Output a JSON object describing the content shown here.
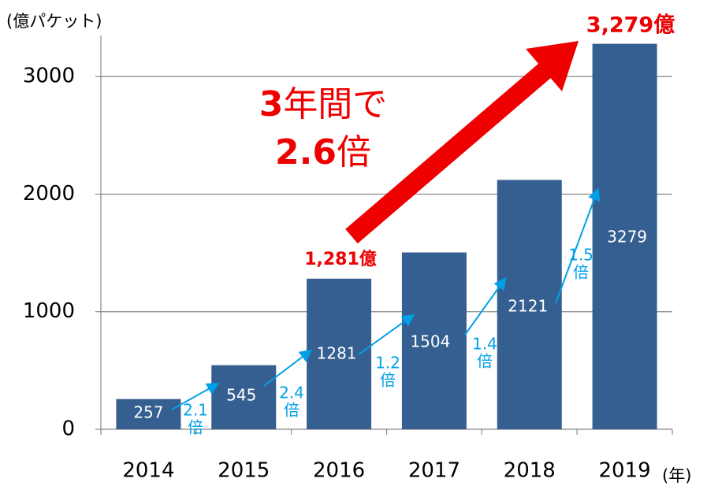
{
  "chart_data": {
    "type": "bar",
    "y_axis_label": "(億パケット)",
    "x_axis_label": "(年)",
    "categories": [
      "2014",
      "2015",
      "2016",
      "2017",
      "2018",
      "2019"
    ],
    "values": [
      257,
      545,
      1281,
      1504,
      2121,
      3279
    ],
    "color": "#365f91",
    "ylim": [
      0,
      3350
    ],
    "yticks": [
      0,
      1000,
      2000,
      3000
    ],
    "grid": true,
    "growth_labels": [
      "2.1",
      "2.4",
      "1.2",
      "1.4",
      "1.5"
    ],
    "growth_unit": "倍",
    "growth_color": "#00a0e9",
    "highlight_color": "#ee0000",
    "callouts": [
      "1,281億",
      "3,279億"
    ],
    "headline": {
      "line1": [
        "3",
        "年間で"
      ],
      "line2": [
        "2.6",
        "倍"
      ]
    }
  }
}
